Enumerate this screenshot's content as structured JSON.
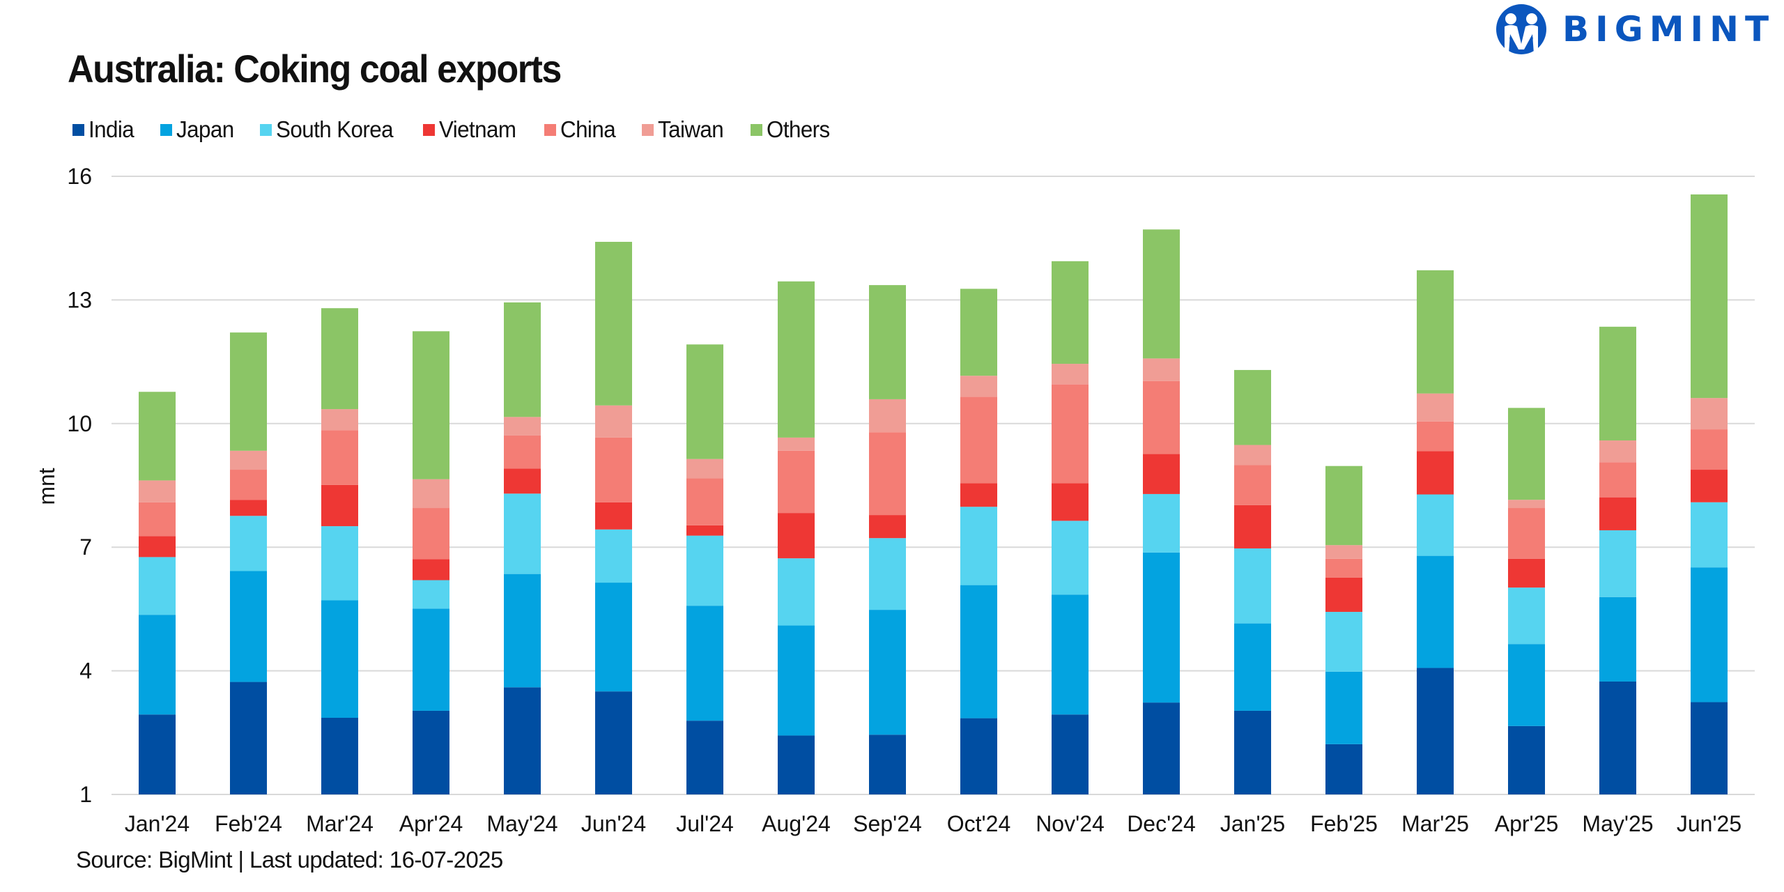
{
  "logo": {
    "text": "BIGMINT",
    "icon": "bigmint-people-logo-icon",
    "color": "#0B56BE"
  },
  "footer": {
    "source": "Source: BigMint | Last updated: 16-07-2025"
  },
  "chart_data": {
    "type": "bar",
    "stacked": true,
    "title": "Australia: Coking coal exports",
    "xlabel": "",
    "ylabel": "mnt",
    "ylim": [
      1,
      16
    ],
    "yticks": [
      1,
      4,
      7,
      10,
      13,
      16
    ],
    "grid": true,
    "legend_position": "top-left",
    "categories": [
      "Jan'24",
      "Feb'24",
      "Mar'24",
      "Apr'24",
      "May'24",
      "Jun'24",
      "Jul'24",
      "Aug'24",
      "Sep'24",
      "Oct'24",
      "Nov'24",
      "Dec'24",
      "Jan'25",
      "Feb'25",
      "Mar'25",
      "Apr'25",
      "May'25",
      "Jun'25"
    ],
    "series": [
      {
        "name": "India",
        "color": "#004EA2",
        "values": [
          1.94,
          2.73,
          1.86,
          2.03,
          2.6,
          2.5,
          1.79,
          1.43,
          1.45,
          1.85,
          1.94,
          2.23,
          2.03,
          1.22,
          3.07,
          1.66,
          2.74,
          2.24
        ]
      },
      {
        "name": "Japan",
        "color": "#03A3E0",
        "values": [
          2.42,
          2.69,
          2.85,
          2.48,
          2.75,
          2.64,
          2.79,
          2.67,
          3.03,
          3.23,
          2.91,
          3.64,
          2.12,
          1.76,
          2.72,
          1.99,
          2.05,
          3.27
        ]
      },
      {
        "name": "South Korea",
        "color": "#56D4F0",
        "values": [
          1.4,
          1.34,
          1.8,
          0.69,
          1.95,
          1.29,
          1.7,
          1.63,
          1.74,
          1.9,
          1.79,
          1.42,
          1.82,
          1.45,
          1.49,
          1.37,
          1.62,
          1.58
        ]
      },
      {
        "name": "Vietnam",
        "color": "#EE3734",
        "values": [
          0.51,
          0.39,
          1.0,
          0.51,
          0.61,
          0.66,
          0.25,
          1.1,
          0.56,
          0.57,
          0.91,
          0.97,
          1.05,
          0.83,
          1.05,
          0.7,
          0.8,
          0.79
        ]
      },
      {
        "name": "China",
        "color": "#F47D75",
        "values": [
          0.82,
          0.73,
          1.33,
          1.24,
          0.8,
          1.57,
          1.14,
          1.51,
          2.01,
          2.1,
          2.4,
          1.77,
          0.97,
          0.46,
          0.72,
          1.23,
          0.85,
          0.98
        ]
      },
      {
        "name": "Taiwan",
        "color": "#F09D95",
        "values": [
          0.53,
          0.46,
          0.51,
          0.7,
          0.45,
          0.78,
          0.47,
          0.32,
          0.8,
          0.51,
          0.5,
          0.55,
          0.49,
          0.33,
          0.68,
          0.2,
          0.53,
          0.76
        ]
      },
      {
        "name": "Others",
        "color": "#8BC566",
        "values": [
          2.15,
          2.87,
          2.45,
          3.59,
          2.78,
          3.97,
          2.78,
          3.79,
          2.77,
          2.11,
          2.49,
          3.13,
          1.82,
          1.92,
          2.99,
          2.23,
          2.76,
          4.94
        ]
      }
    ],
    "totals": [
      10.77,
      12.21,
      12.8,
      12.24,
      12.94,
      14.41,
      11.92,
      13.45,
      13.36,
      13.27,
      13.94,
      14.71,
      11.3,
      8.97,
      13.72,
      10.38,
      12.35,
      15.56
    ]
  }
}
